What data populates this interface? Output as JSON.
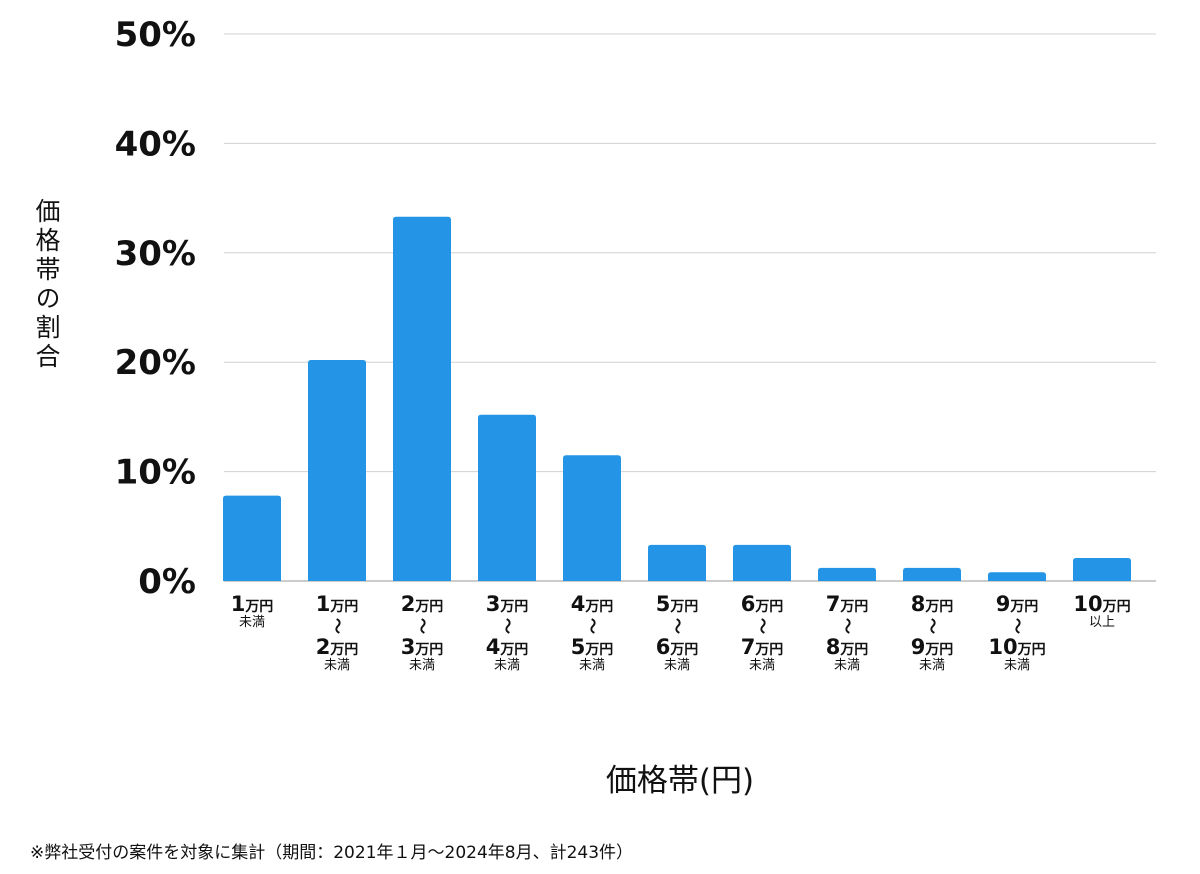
{
  "chart_data": {
    "type": "bar",
    "title": "",
    "xlabel": "価格帯(円)",
    "ylabel": "価格帯の割合",
    "ylim": [
      0,
      50
    ],
    "yticks": [
      "0%",
      "10%",
      "20%",
      "30%",
      "40%",
      "50%"
    ],
    "grid": true,
    "bar_color": "#2394e6",
    "unit": "万円",
    "separator": "～",
    "categories": [
      {
        "from": "1",
        "to": "",
        "note": "未満"
      },
      {
        "from": "1",
        "to": "2",
        "note": "未満"
      },
      {
        "from": "2",
        "to": "3",
        "note": "未満"
      },
      {
        "from": "3",
        "to": "4",
        "note": "未満"
      },
      {
        "from": "4",
        "to": "5",
        "note": "未満"
      },
      {
        "from": "5",
        "to": "6",
        "note": "未満"
      },
      {
        "from": "6",
        "to": "7",
        "note": "未満"
      },
      {
        "from": "7",
        "to": "8",
        "note": "未満"
      },
      {
        "from": "8",
        "to": "9",
        "note": "未満"
      },
      {
        "from": "9",
        "to": "10",
        "note": "未満"
      },
      {
        "from": "10",
        "to": "",
        "note": "以上"
      }
    ],
    "values": [
      7.8,
      20.2,
      33.3,
      15.2,
      11.5,
      3.3,
      3.3,
      1.2,
      1.2,
      0.8,
      2.1
    ]
  },
  "footnote": "※弊社受付の案件を対象に集計（期間：2021年１月～2024年8月、計243件）"
}
